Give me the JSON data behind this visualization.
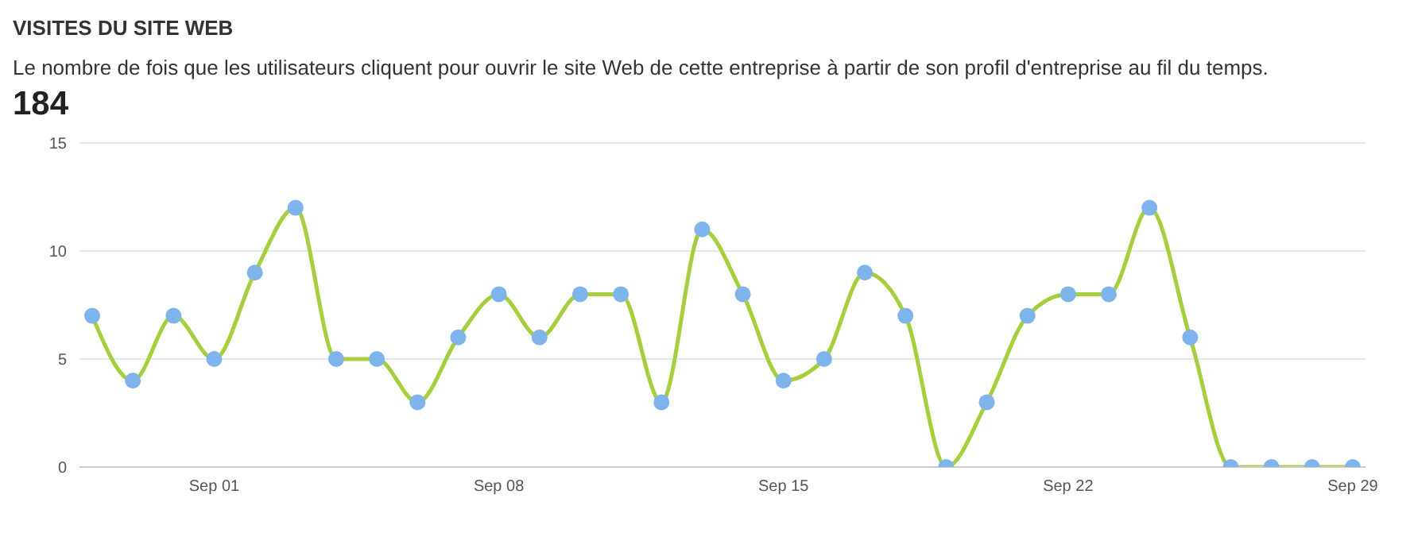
{
  "chart_data": {
    "type": "line",
    "title": "VISITES DU SITE WEB",
    "subtitle": "Le nombre de fois que les utilisateurs cliquent pour ouvrir le site Web de cette entreprise à partir de son profil d'entreprise au fil du temps.",
    "annotations": [
      "184"
    ],
    "categories": [
      null,
      null,
      null,
      "Sep 01",
      null,
      null,
      null,
      null,
      null,
      null,
      "Sep 08",
      null,
      null,
      null,
      null,
      null,
      null,
      "Sep 15",
      null,
      null,
      null,
      null,
      null,
      null,
      "Sep 22",
      null,
      null,
      null,
      null,
      null,
      null,
      "Sep 29"
    ],
    "series": [
      {
        "color": "#a5cf3c",
        "colors": [
          "#7fb3ec",
          "#7fb3ec",
          "#7fb3ec",
          "#7fb3ec",
          "#7fb3ec",
          "#7fb3ec",
          "#7fb3ec",
          "#7fb3ec",
          "#7fb3ec",
          "#7fb3ec",
          "#7fb3ec",
          "#7fb3ec",
          "#7fb3ec",
          "#7fb3ec",
          "#7fb3ec",
          "#7fb3ec",
          "#7fb3ec",
          "#7fb3ec",
          "#7fb3ec",
          "#7fb3ec",
          "#7fb3ec",
          "#7fb3ec",
          "#7fb3ec",
          "#7fb3ec",
          "#7fb3ec",
          "#7fb3ec",
          "#7fb3ec",
          "#7fb3ec",
          "#7fb3ec",
          "#7fb3ec",
          "#7fb3ec",
          "#7fb3ec"
        ],
        "values": [
          7,
          4,
          7,
          5,
          9,
          12,
          5,
          5,
          3,
          6,
          8,
          6,
          8,
          8,
          3,
          11,
          8,
          4,
          5,
          9,
          7,
          0,
          3,
          7,
          8,
          8,
          12,
          6,
          0,
          0,
          0,
          0
        ]
      }
    ],
    "ylim": [
      0,
      15
    ],
    "yticks": [
      0,
      5,
      10,
      15
    ],
    "grid": "y",
    "marker": "circle",
    "line_style": "solid",
    "legend": false
  }
}
